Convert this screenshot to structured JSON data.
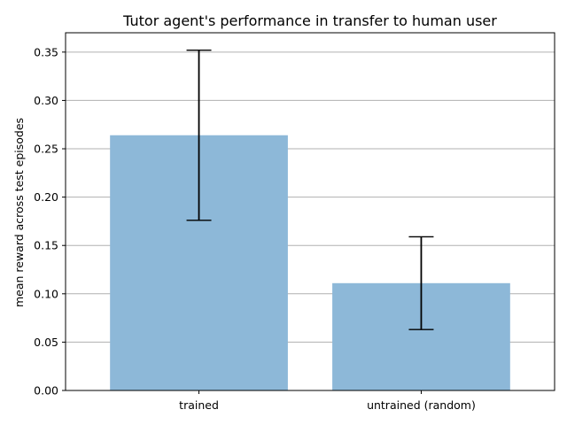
{
  "chart_data": {
    "type": "bar",
    "title": "Tutor agent's performance in transfer to human user",
    "xlabel": "",
    "ylabel": "mean reward across test episodes",
    "categories": [
      "trained",
      "untrained (random)"
    ],
    "values": [
      0.264,
      0.111
    ],
    "error_low": [
      0.176,
      0.063
    ],
    "error_high": [
      0.352,
      0.159
    ],
    "ylim": [
      0,
      0.37
    ],
    "yticks": [
      0.0,
      0.05,
      0.1,
      0.15,
      0.2,
      0.25,
      0.3,
      0.35
    ],
    "ytick_labels": [
      "0.00",
      "0.05",
      "0.10",
      "0.15",
      "0.20",
      "0.25",
      "0.30",
      "0.35"
    ],
    "grid": "horizontal",
    "bar_color": "#8db8d8",
    "error_color": "#000000",
    "grid_color": "#b0b0b0"
  }
}
